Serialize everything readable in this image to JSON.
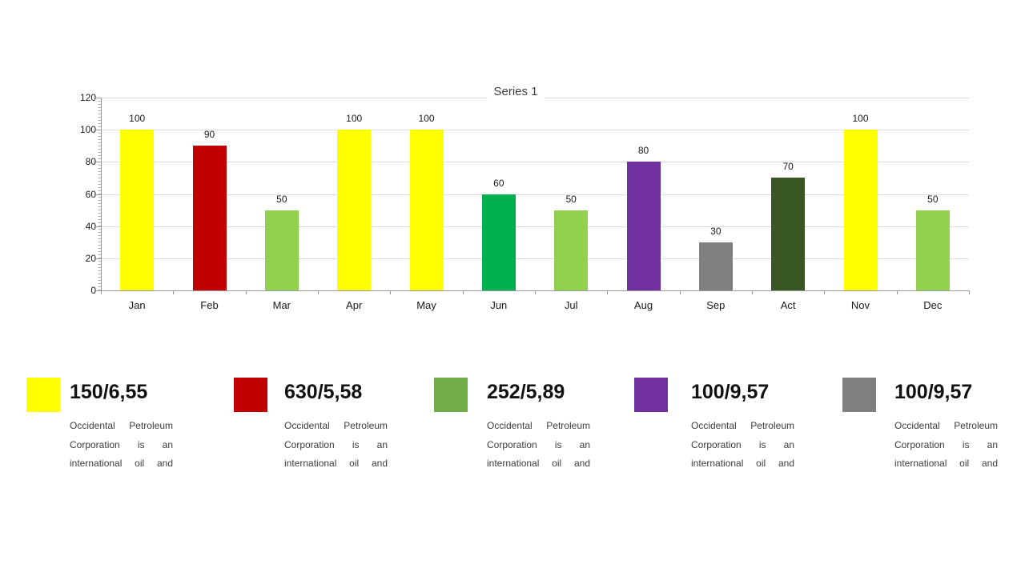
{
  "chart_data": {
    "type": "bar",
    "title": "Series 1",
    "categories": [
      "Jan",
      "Feb",
      "Mar",
      "Apr",
      "May",
      "Jun",
      "Jul",
      "Aug",
      "Sep",
      "Act",
      "Nov",
      "Dec"
    ],
    "values": [
      100,
      90,
      50,
      100,
      100,
      60,
      50,
      80,
      30,
      70,
      100,
      50
    ],
    "bar_colors": [
      "#FFFF00",
      "#C00000",
      "#92D050",
      "#FFFF00",
      "#FFFF00",
      "#00B050",
      "#92D050",
      "#7030A0",
      "#7F7F7F",
      "#385723",
      "#FFFF00",
      "#92D050"
    ],
    "stippled_bar_index": 8,
    "data_labels": true,
    "xlabel": "",
    "ylabel": "",
    "ylim": [
      0,
      120
    ],
    "yticks": [
      0,
      20,
      40,
      60,
      80,
      100,
      120
    ],
    "grid": "horizontal",
    "legend_position": "none"
  },
  "legend_cards": [
    {
      "color": "#FFFF00",
      "value": "150/6,55",
      "description": "Occidental Petroleum Corporation is an international oil and"
    },
    {
      "color": "#C00000",
      "value": "630/5,58",
      "description": "Occidental Petroleum Corporation is an international oil and"
    },
    {
      "color": "#70AD47",
      "value": "252/5,89",
      "description": "Occidental Petroleum Corporation is an international oil and"
    },
    {
      "color": "#7030A0",
      "value": "100/9,57",
      "description": "Occidental Petroleum Corporation is an international oil and"
    },
    {
      "color": "#7F7F7F",
      "value": "100/9,57",
      "description": "Occidental Petroleum Corporation is an international oil and"
    }
  ]
}
